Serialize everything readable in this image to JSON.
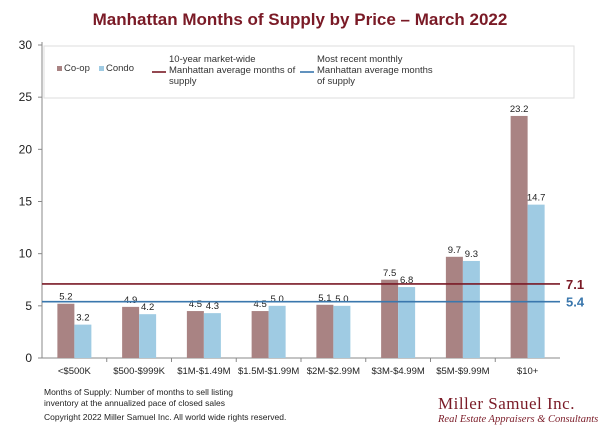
{
  "chart_data": {
    "type": "bar",
    "title": "Manhattan Months of Supply by Price – March 2022",
    "categories": [
      "<$500K",
      "$500-$999K",
      "$1M-$1.49M",
      "$1.5M-$1.99M",
      "$2M-$2.99M",
      "$3M-$4.99M",
      "$5M-$9.99M",
      "$10+"
    ],
    "series": [
      {
        "name": "Co-op",
        "color": "#a98383",
        "values": [
          5.2,
          4.9,
          4.5,
          4.5,
          5.1,
          7.5,
          9.7,
          23.2
        ]
      },
      {
        "name": "Condo",
        "color": "#9fcbe3",
        "values": [
          3.2,
          4.2,
          4.3,
          5.0,
          5.0,
          6.8,
          9.3,
          14.7
        ]
      }
    ],
    "reference_lines": [
      {
        "name": "10-year market-wide Manhattan average months of supply",
        "value": 7.1,
        "label": "7.1",
        "color": "#7a1a26"
      },
      {
        "name": "Most recent monthly Manhattan average months of supply",
        "value": 5.4,
        "label": "5.4",
        "color": "#3a77ad"
      }
    ],
    "ylim": [
      0,
      30
    ],
    "yticks": [
      0,
      5,
      10,
      15,
      20,
      25,
      30
    ],
    "xlabel": "",
    "ylabel": "",
    "grid": false,
    "legend": "top-left"
  },
  "legend_text": {
    "line1": [
      "10-year market-wide",
      "Manhattan average months of",
      "supply"
    ],
    "line2": [
      "Most recent monthly",
      "Manhattan average months",
      "of supply"
    ]
  },
  "footer": {
    "note1": "Months of Supply: Number of months to sell listing",
    "note2": "inventory at the annualized pace of closed sales",
    "copyright": "Copyright 2022 Miller Samuel Inc.  All world wide rights reserved."
  },
  "brand": {
    "name": "Miller Samuel Inc.",
    "tagline": "Real Estate Appraisers & Consultants"
  }
}
